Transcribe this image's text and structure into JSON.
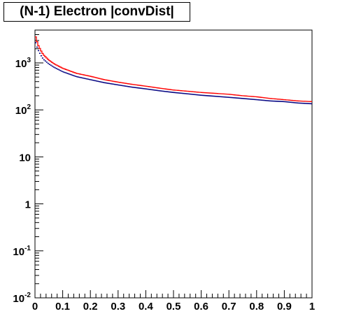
{
  "chart_data": {
    "type": "line",
    "title": "(N-1) Electron |convDist|",
    "xlabel": "",
    "ylabel": "",
    "xlim": [
      0,
      1
    ],
    "ylim": [
      0.01,
      5000
    ],
    "y_scale": "log",
    "grid": false,
    "x_ticks": [
      "0",
      "0.1",
      "0.2",
      "0.3",
      "0.4",
      "0.5",
      "0.6",
      "0.7",
      "0.8",
      "0.9",
      "1"
    ],
    "y_ticks": [
      {
        "value": 0.01,
        "base": "10",
        "exp": "-2"
      },
      {
        "value": 0.1,
        "base": "10",
        "exp": "-1"
      },
      {
        "value": 1,
        "base": "1",
        "exp": ""
      },
      {
        "value": 10,
        "base": "10",
        "exp": ""
      },
      {
        "value": 100,
        "base": "10",
        "exp": "2"
      },
      {
        "value": 1000,
        "base": "10",
        "exp": "3"
      }
    ],
    "series": [
      {
        "style": "step-histogram",
        "color": "#ff0000",
        "x": [
          0.0,
          0.005,
          0.01,
          0.02,
          0.03,
          0.05,
          0.07,
          0.1,
          0.15,
          0.2,
          0.25,
          0.3,
          0.35,
          0.4,
          0.45,
          0.5,
          0.55,
          0.6,
          0.65,
          0.7,
          0.75,
          0.8,
          0.85,
          0.9,
          0.95,
          1.0
        ],
        "values": [
          4000,
          3200,
          2500,
          1900,
          1500,
          1150,
          950,
          770,
          600,
          520,
          440,
          390,
          350,
          320,
          290,
          265,
          250,
          235,
          225,
          215,
          200,
          190,
          175,
          165,
          155,
          150
        ]
      },
      {
        "style": "markers",
        "color": "#000080",
        "x": [
          0.0,
          0.005,
          0.01,
          0.02,
          0.03,
          0.05,
          0.07,
          0.1,
          0.15,
          0.2,
          0.25,
          0.3,
          0.35,
          0.4,
          0.45,
          0.5,
          0.55,
          0.6,
          0.65,
          0.7,
          0.75,
          0.8,
          0.85,
          0.9,
          0.95,
          1.0
        ],
        "values": [
          3000,
          2400,
          1950,
          1500,
          1200,
          950,
          800,
          650,
          510,
          440,
          380,
          340,
          305,
          280,
          255,
          235,
          220,
          205,
          195,
          185,
          175,
          165,
          155,
          150,
          140,
          135
        ]
      }
    ]
  }
}
